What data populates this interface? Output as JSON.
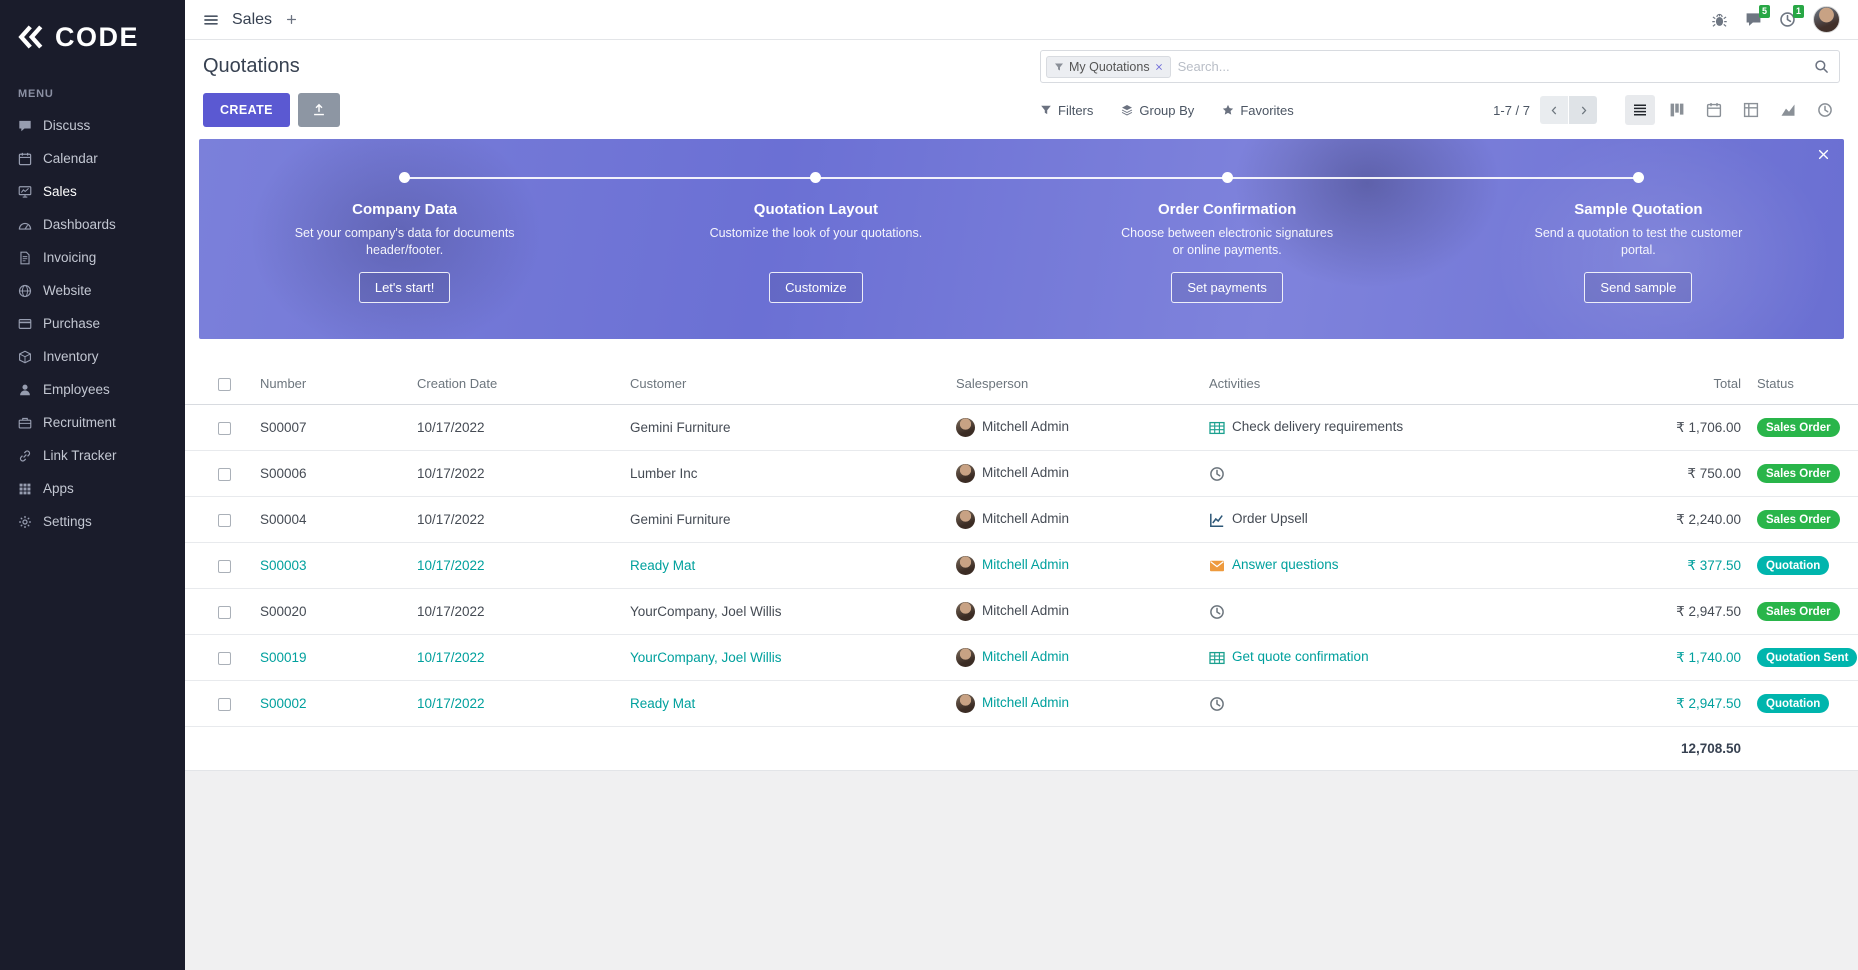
{
  "colors": {
    "primary": "#5b59d2",
    "accent": "#00a09d",
    "status_success": "#29b54a",
    "status_info": "#00b5ad",
    "sidebar_bg": "#1a1c2b",
    "banner": "#6a6fd2"
  },
  "brand": {
    "name": "CODE"
  },
  "sidebar": {
    "menu_label": "MENU",
    "items": [
      {
        "id": "discuss",
        "label": "Discuss",
        "icon": "discuss"
      },
      {
        "id": "calendar",
        "label": "Calendar",
        "icon": "calendar"
      },
      {
        "id": "sales",
        "label": "Sales",
        "icon": "sales",
        "active": true
      },
      {
        "id": "dashboards",
        "label": "Dashboards",
        "icon": "dashboards"
      },
      {
        "id": "invoicing",
        "label": "Invoicing",
        "icon": "invoicing"
      },
      {
        "id": "website",
        "label": "Website",
        "icon": "website"
      },
      {
        "id": "purchase",
        "label": "Purchase",
        "icon": "purchase"
      },
      {
        "id": "inventory",
        "label": "Inventory",
        "icon": "inventory"
      },
      {
        "id": "employees",
        "label": "Employees",
        "icon": "employees"
      },
      {
        "id": "recruitment",
        "label": "Recruitment",
        "icon": "recruitment"
      },
      {
        "id": "link-tracker",
        "label": "Link Tracker",
        "icon": "link"
      },
      {
        "id": "apps",
        "label": "Apps",
        "icon": "apps"
      },
      {
        "id": "settings",
        "label": "Settings",
        "icon": "settings"
      }
    ]
  },
  "topbar": {
    "app_title": "Sales",
    "badges": {
      "messages": "5",
      "activities": "1"
    }
  },
  "control_panel": {
    "title": "Quotations",
    "create_label": "CREATE",
    "search": {
      "filter_tag": "My Quotations",
      "placeholder": "Search..."
    },
    "filters_label": "Filters",
    "groupby_label": "Group By",
    "favorites_label": "Favorites",
    "pager": "1-7 / 7",
    "view_modes": [
      {
        "id": "list",
        "icon": "list-view",
        "active": true
      },
      {
        "id": "kanban",
        "icon": "kanban-view",
        "active": false
      },
      {
        "id": "calendar",
        "icon": "calendar-view",
        "active": false
      },
      {
        "id": "pivot",
        "icon": "pivot-view",
        "active": false
      },
      {
        "id": "graph",
        "icon": "graph-view",
        "active": false
      },
      {
        "id": "activity",
        "icon": "activity-view",
        "active": false
      }
    ]
  },
  "onboarding": {
    "steps": [
      {
        "title": "Company Data",
        "description": "Set your company's data for documents header/footer.",
        "button": "Let's start!"
      },
      {
        "title": "Quotation Layout",
        "description": "Customize the look of your quotations.",
        "button": "Customize"
      },
      {
        "title": "Order Confirmation",
        "description": "Choose between electronic signatures or online payments.",
        "button": "Set payments"
      },
      {
        "title": "Sample Quotation",
        "description": "Send a quotation to test the customer portal.",
        "button": "Send sample"
      }
    ]
  },
  "table": {
    "columns": [
      "Number",
      "Creation Date",
      "Customer",
      "Salesperson",
      "Activities",
      "Total",
      "Status"
    ],
    "rows": [
      {
        "number": "S00007",
        "date": "10/17/2022",
        "customer": "Gemini Furniture",
        "salesperson": "Mitchell Admin",
        "activity": "Check delivery requirements",
        "activity_icon": "table",
        "total": "₹ 1,706.00",
        "status": "Sales Order",
        "status_type": "success",
        "highlight": false
      },
      {
        "number": "S00006",
        "date": "10/17/2022",
        "customer": "Lumber Inc",
        "salesperson": "Mitchell Admin",
        "activity": "",
        "activity_icon": "clock",
        "total": "₹ 750.00",
        "status": "Sales Order",
        "status_type": "success",
        "highlight": false
      },
      {
        "number": "S00004",
        "date": "10/17/2022",
        "customer": "Gemini Furniture",
        "salesperson": "Mitchell Admin",
        "activity": "Order Upsell",
        "activity_icon": "chart",
        "total": "₹ 2,240.00",
        "status": "Sales Order",
        "status_type": "success",
        "highlight": false
      },
      {
        "number": "S00003",
        "date": "10/17/2022",
        "customer": "Ready Mat",
        "salesperson": "Mitchell Admin",
        "activity": "Answer questions",
        "activity_icon": "mail",
        "total": "₹ 377.50",
        "status": "Quotation",
        "status_type": "info",
        "highlight": true
      },
      {
        "number": "S00020",
        "date": "10/17/2022",
        "customer": "YourCompany, Joel Willis",
        "salesperson": "Mitchell Admin",
        "activity": "",
        "activity_icon": "clock",
        "total": "₹ 2,947.50",
        "status": "Sales Order",
        "status_type": "success",
        "highlight": false
      },
      {
        "number": "S00019",
        "date": "10/17/2022",
        "customer": "YourCompany, Joel Willis",
        "salesperson": "Mitchell Admin",
        "activity": "Get quote confirmation",
        "activity_icon": "table",
        "total": "₹ 1,740.00",
        "status": "Quotation Sent",
        "status_type": "info",
        "highlight": true
      },
      {
        "number": "S00002",
        "date": "10/17/2022",
        "customer": "Ready Mat",
        "salesperson": "Mitchell Admin",
        "activity": "",
        "activity_icon": "clock",
        "total": "₹ 2,947.50",
        "status": "Quotation",
        "status_type": "info",
        "highlight": true
      }
    ],
    "footer_total": "12,708.50"
  }
}
